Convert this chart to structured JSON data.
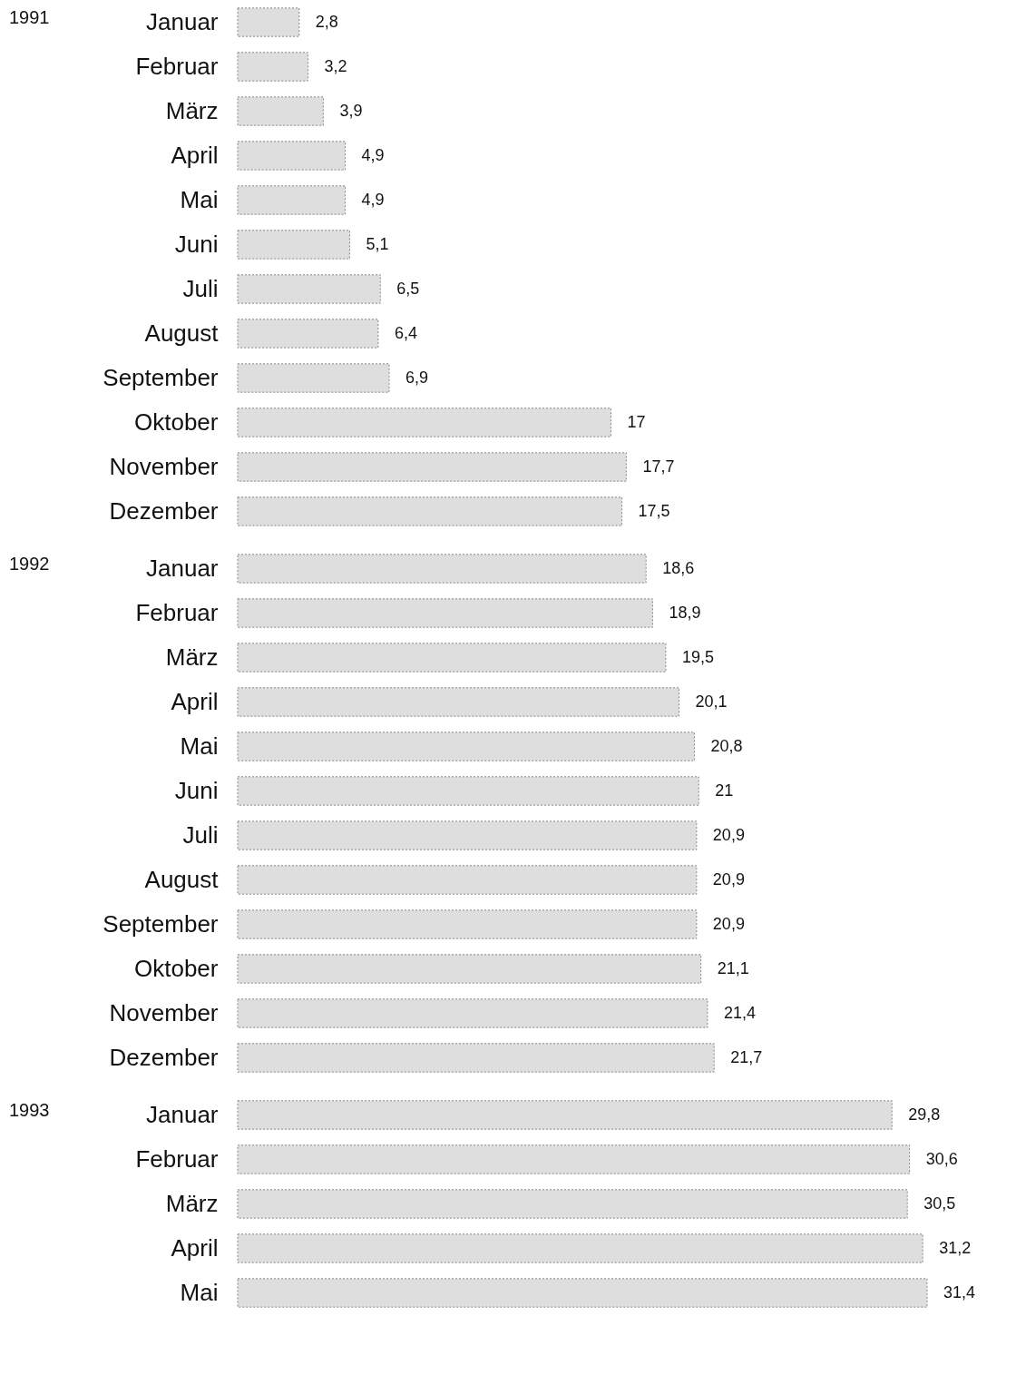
{
  "chart_data": [
    {
      "type": "bar",
      "orientation": "horizontal",
      "title": "1991",
      "categories": [
        "Januar",
        "Februar",
        "März",
        "April",
        "Mai",
        "Juni",
        "Juli",
        "August",
        "September",
        "Oktober",
        "November",
        "Dezember"
      ],
      "values": [
        2.8,
        3.2,
        3.9,
        4.9,
        4.9,
        5.1,
        6.5,
        6.4,
        6.9,
        17,
        17.7,
        17.5
      ],
      "value_labels": [
        "2,8",
        "3,2",
        "3,9",
        "4,9",
        "4,9",
        "5,1",
        "6,5",
        "6,4",
        "6,9",
        "17",
        "17,7",
        "17,5"
      ],
      "color": "#dedede",
      "tick_labels": "y"
    },
    {
      "type": "bar",
      "orientation": "horizontal",
      "title": "1992",
      "categories": [
        "Januar",
        "Februar",
        "März",
        "April",
        "Mai",
        "Juni",
        "Juli",
        "August",
        "September",
        "Oktober",
        "November",
        "Dezember"
      ],
      "values": [
        18.6,
        18.9,
        19.5,
        20.1,
        20.8,
        21,
        20.9,
        20.9,
        20.9,
        21.1,
        21.4,
        21.7
      ],
      "value_labels": [
        "18,6",
        "18,9",
        "19,5",
        "20,1",
        "20,8",
        "21",
        "20,9",
        "20,9",
        "20,9",
        "21,1",
        "21,4",
        "21,7"
      ],
      "color": "#dedede",
      "tick_labels": "y"
    },
    {
      "type": "bar",
      "orientation": "horizontal",
      "title": "1993",
      "categories": [
        "Januar",
        "Februar",
        "März",
        "April",
        "Mai"
      ],
      "values": [
        29.8,
        30.6,
        30.5,
        31.2,
        31.4
      ],
      "value_labels": [
        "29,8",
        "30,6",
        "30,5",
        "31,2",
        "31,4"
      ],
      "color": "#dedede",
      "tick_labels": "y"
    }
  ]
}
